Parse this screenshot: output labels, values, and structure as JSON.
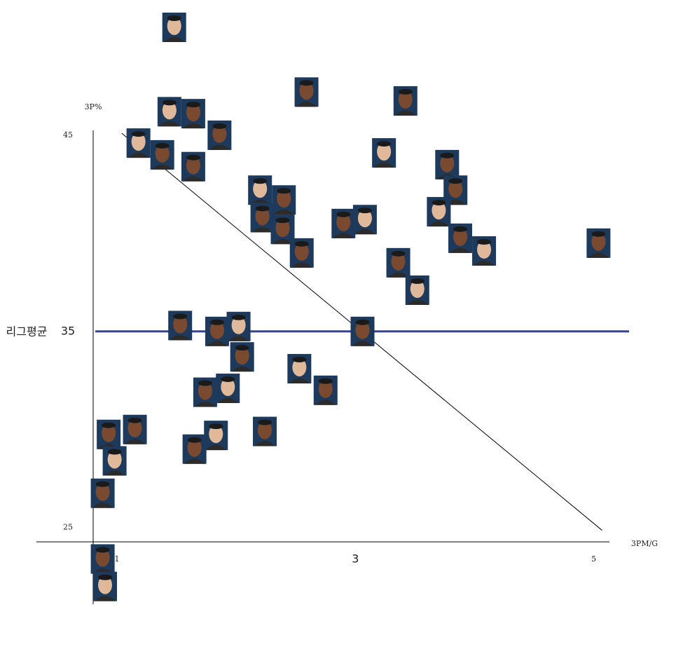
{
  "chart_data": {
    "type": "scatter",
    "x_label": "3PM/G",
    "y_label": "3P%",
    "xlim": [
      0.8,
      5.12
    ],
    "ylim": [
      21.2,
      51.5
    ],
    "xticks": [
      1,
      3,
      5
    ],
    "yticks": [
      25,
      35,
      45
    ],
    "reference_line": {
      "label": "리그평균",
      "value": 35,
      "color": "#3b3f9e"
    },
    "trend_line": {
      "x": [
        1.04,
        5.07
      ],
      "values": [
        45.1,
        24.86
      ],
      "color": "#000000"
    },
    "series": [
      {
        "color": "#1d3a5c",
        "x": [
          1.48,
          2.59,
          3.42,
          1.44,
          1.64,
          1.86,
          1.18,
          1.38,
          1.64,
          3.24,
          3.77,
          3.84,
          2.2,
          2.4,
          2.22,
          3.7,
          2.39,
          2.9,
          3.08,
          2.55,
          3.88,
          4.08,
          5.04,
          3.36,
          3.52,
          1.53,
          1.84,
          2.02,
          3.06,
          2.05,
          2.53,
          2.75,
          1.74,
          1.93,
          1.15,
          0.93,
          1.83,
          2.24,
          1.65,
          0.98,
          0.88,
          0.88,
          0.9
        ],
        "values": [
          50.5,
          47.2,
          46.75,
          46.2,
          46.1,
          45.0,
          44.6,
          44.0,
          43.4,
          44.1,
          43.5,
          42.2,
          42.2,
          41.7,
          40.8,
          41.1,
          40.2,
          40.5,
          40.7,
          39.0,
          39.75,
          39.1,
          39.5,
          38.5,
          37.1,
          35.3,
          35.0,
          35.25,
          35.0,
          33.7,
          33.1,
          32.0,
          31.9,
          32.1,
          30.0,
          29.75,
          29.7,
          29.9,
          29.0,
          28.4,
          26.75,
          23.4,
          22.0
        ]
      }
    ]
  }
}
